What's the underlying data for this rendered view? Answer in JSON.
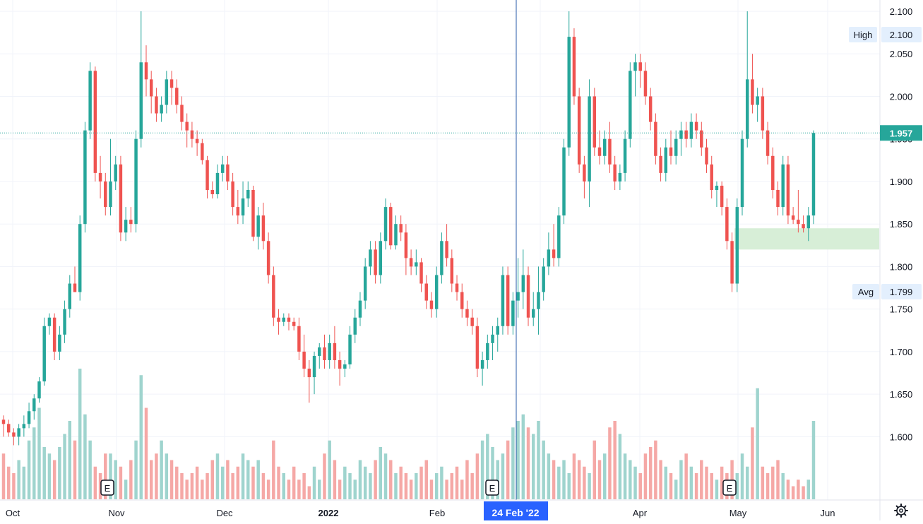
{
  "colors": {
    "up": "#26a69a",
    "down": "#ef5350",
    "up_volume": "#9fd4ce",
    "down_volume": "#f5a8a6",
    "grid": "#f0f3fa",
    "crosshair": "#2a5ba8",
    "last_price": "#26a69a",
    "badge_bg": "#e3effd",
    "range_zone": "#d7eed7",
    "crosshair_label_bg": "#2962ff"
  },
  "y_axis": {
    "ticks": [
      "1.600",
      "1.650",
      "1.700",
      "1.750",
      "1.800",
      "1.850",
      "1.900",
      "1.950",
      "2.000",
      "2.050",
      "2.100"
    ],
    "range": [
      1.563,
      2.112
    ]
  },
  "x_axis": {
    "labels": [
      "Oct",
      "Nov",
      "Dec",
      "2022",
      "Feb",
      "Apr",
      "May",
      "Jun"
    ]
  },
  "badges": {
    "high_label": "High",
    "high_value": "2.100",
    "avg_label": "Avg",
    "avg_value": "1.799",
    "last_price": "1.957"
  },
  "crosshair_date": "24 Feb '22",
  "earnings_marker": "E",
  "settings_icon": "gear-icon",
  "chart_data": {
    "type": "candlestick",
    "last_price": 1.957,
    "high": 2.1,
    "avg": 1.799,
    "crosshair": "24 Feb '22",
    "earnings_markers": [
      "Nov",
      "Feb",
      "May"
    ],
    "range_zone": [
      1.82,
      1.845
    ],
    "ohlc": [
      [
        1.62,
        1.625,
        1.6,
        1.615
      ],
      [
        1.615,
        1.62,
        1.6,
        1.605
      ],
      [
        1.605,
        1.61,
        1.59,
        1.6
      ],
      [
        1.6,
        1.615,
        1.59,
        1.61
      ],
      [
        1.61,
        1.625,
        1.6,
        1.615
      ],
      [
        1.615,
        1.64,
        1.61,
        1.63
      ],
      [
        1.63,
        1.65,
        1.62,
        1.645
      ],
      [
        1.645,
        1.67,
        1.64,
        1.665
      ],
      [
        1.665,
        1.74,
        1.66,
        1.73
      ],
      [
        1.73,
        1.745,
        1.72,
        1.74
      ],
      [
        1.74,
        1.745,
        1.69,
        1.7
      ],
      [
        1.7,
        1.73,
        1.69,
        1.72
      ],
      [
        1.72,
        1.76,
        1.71,
        1.75
      ],
      [
        1.75,
        1.79,
        1.74,
        1.78
      ],
      [
        1.78,
        1.8,
        1.77,
        1.77
      ],
      [
        1.77,
        1.86,
        1.76,
        1.85
      ],
      [
        1.85,
        1.97,
        1.84,
        1.96
      ],
      [
        1.96,
        2.04,
        1.95,
        2.03
      ],
      [
        2.03,
        2.035,
        1.9,
        1.91
      ],
      [
        1.91,
        1.93,
        1.88,
        1.9
      ],
      [
        1.9,
        1.91,
        1.86,
        1.87
      ],
      [
        1.87,
        1.95,
        1.86,
        1.9
      ],
      [
        1.9,
        1.93,
        1.89,
        1.92
      ],
      [
        1.92,
        1.93,
        1.83,
        1.84
      ],
      [
        1.84,
        1.87,
        1.83,
        1.855
      ],
      [
        1.855,
        1.87,
        1.84,
        1.85
      ],
      [
        1.85,
        1.96,
        1.84,
        1.95
      ],
      [
        1.95,
        2.1,
        1.94,
        2.04
      ],
      [
        2.04,
        2.06,
        2.0,
        2.02
      ],
      [
        2.02,
        2.03,
        1.98,
        2.0
      ],
      [
        2.0,
        2.01,
        1.97,
        1.98
      ],
      [
        1.98,
        2.0,
        1.97,
        1.99
      ],
      [
        1.99,
        2.03,
        1.98,
        2.02
      ],
      [
        2.02,
        2.03,
        1.99,
        2.01
      ],
      [
        2.01,
        2.02,
        1.98,
        1.99
      ],
      [
        1.99,
        2.0,
        1.96,
        1.97
      ],
      [
        1.97,
        1.98,
        1.94,
        1.96
      ],
      [
        1.96,
        1.97,
        1.94,
        1.95
      ],
      [
        1.95,
        1.96,
        1.93,
        1.945
      ],
      [
        1.945,
        1.95,
        1.92,
        1.925
      ],
      [
        1.925,
        1.93,
        1.88,
        1.89
      ],
      [
        1.89,
        1.9,
        1.88,
        1.885
      ],
      [
        1.885,
        1.92,
        1.88,
        1.91
      ],
      [
        1.91,
        1.93,
        1.9,
        1.92
      ],
      [
        1.92,
        1.93,
        1.89,
        1.9
      ],
      [
        1.9,
        1.91,
        1.86,
        1.87
      ],
      [
        1.87,
        1.89,
        1.85,
        1.86
      ],
      [
        1.86,
        1.9,
        1.85,
        1.88
      ],
      [
        1.88,
        1.9,
        1.87,
        1.89
      ],
      [
        1.89,
        1.895,
        1.83,
        1.835
      ],
      [
        1.835,
        1.87,
        1.82,
        1.86
      ],
      [
        1.86,
        1.875,
        1.82,
        1.83
      ],
      [
        1.83,
        1.84,
        1.78,
        1.79
      ],
      [
        1.79,
        1.8,
        1.73,
        1.74
      ],
      [
        1.74,
        1.75,
        1.72,
        1.735
      ],
      [
        1.735,
        1.745,
        1.73,
        1.74
      ],
      [
        1.74,
        1.745,
        1.725,
        1.735
      ],
      [
        1.735,
        1.74,
        1.725,
        1.73
      ],
      [
        1.73,
        1.74,
        1.69,
        1.7
      ],
      [
        1.7,
        1.72,
        1.67,
        1.68
      ],
      [
        1.68,
        1.69,
        1.64,
        1.67
      ],
      [
        1.67,
        1.7,
        1.65,
        1.695
      ],
      [
        1.695,
        1.71,
        1.68,
        1.705
      ],
      [
        1.705,
        1.72,
        1.68,
        1.69
      ],
      [
        1.69,
        1.72,
        1.68,
        1.71
      ],
      [
        1.71,
        1.73,
        1.68,
        1.69
      ],
      [
        1.69,
        1.7,
        1.66,
        1.68
      ],
      [
        1.68,
        1.69,
        1.67,
        1.685
      ],
      [
        1.685,
        1.73,
        1.68,
        1.72
      ],
      [
        1.72,
        1.75,
        1.71,
        1.74
      ],
      [
        1.74,
        1.77,
        1.73,
        1.76
      ],
      [
        1.76,
        1.81,
        1.75,
        1.8
      ],
      [
        1.8,
        1.83,
        1.79,
        1.82
      ],
      [
        1.82,
        1.83,
        1.78,
        1.79
      ],
      [
        1.79,
        1.84,
        1.78,
        1.83
      ],
      [
        1.83,
        1.88,
        1.82,
        1.87
      ],
      [
        1.87,
        1.875,
        1.82,
        1.825
      ],
      [
        1.825,
        1.86,
        1.82,
        1.85
      ],
      [
        1.85,
        1.86,
        1.83,
        1.84
      ],
      [
        1.84,
        1.85,
        1.79,
        1.81
      ],
      [
        1.81,
        1.82,
        1.79,
        1.8
      ],
      [
        1.8,
        1.82,
        1.79,
        1.805
      ],
      [
        1.805,
        1.81,
        1.77,
        1.78
      ],
      [
        1.78,
        1.79,
        1.75,
        1.76
      ],
      [
        1.76,
        1.77,
        1.74,
        1.75
      ],
      [
        1.75,
        1.8,
        1.74,
        1.79
      ],
      [
        1.79,
        1.84,
        1.78,
        1.83
      ],
      [
        1.83,
        1.85,
        1.8,
        1.81
      ],
      [
        1.81,
        1.82,
        1.77,
        1.78
      ],
      [
        1.78,
        1.79,
        1.76,
        1.77
      ],
      [
        1.77,
        1.78,
        1.74,
        1.75
      ],
      [
        1.75,
        1.76,
        1.73,
        1.74
      ],
      [
        1.74,
        1.75,
        1.72,
        1.73
      ],
      [
        1.73,
        1.74,
        1.67,
        1.68
      ],
      [
        1.68,
        1.7,
        1.66,
        1.69
      ],
      [
        1.69,
        1.72,
        1.68,
        1.71
      ],
      [
        1.71,
        1.73,
        1.69,
        1.72
      ],
      [
        1.72,
        1.74,
        1.7,
        1.73
      ],
      [
        1.73,
        1.8,
        1.72,
        1.79
      ],
      [
        1.79,
        1.8,
        1.72,
        1.73
      ],
      [
        1.73,
        1.77,
        1.72,
        1.76
      ],
      [
        1.76,
        1.81,
        1.74,
        1.77
      ],
      [
        1.77,
        1.82,
        1.75,
        1.79
      ],
      [
        1.79,
        1.8,
        1.73,
        1.74
      ],
      [
        1.74,
        1.77,
        1.73,
        1.75
      ],
      [
        1.75,
        1.8,
        1.72,
        1.77
      ],
      [
        1.77,
        1.81,
        1.76,
        1.8
      ],
      [
        1.8,
        1.84,
        1.79,
        1.82
      ],
      [
        1.82,
        1.85,
        1.8,
        1.81
      ],
      [
        1.81,
        1.87,
        1.8,
        1.86
      ],
      [
        1.86,
        1.95,
        1.85,
        1.94
      ],
      [
        1.94,
        2.1,
        1.93,
        2.07
      ],
      [
        2.07,
        2.08,
        1.99,
        2.0
      ],
      [
        2.0,
        2.01,
        1.91,
        1.92
      ],
      [
        1.92,
        1.93,
        1.88,
        1.9
      ],
      [
        1.9,
        2.02,
        1.87,
        2.0
      ],
      [
        2.0,
        2.01,
        1.93,
        1.94
      ],
      [
        1.94,
        1.96,
        1.92,
        1.93
      ],
      [
        1.93,
        1.96,
        1.92,
        1.95
      ],
      [
        1.95,
        1.97,
        1.91,
        1.92
      ],
      [
        1.92,
        1.93,
        1.89,
        1.9
      ],
      [
        1.9,
        1.92,
        1.89,
        1.91
      ],
      [
        1.91,
        1.96,
        1.9,
        1.95
      ],
      [
        1.95,
        2.04,
        1.94,
        2.03
      ],
      [
        2.03,
        2.05,
        2.0,
        2.04
      ],
      [
        2.04,
        2.05,
        2.01,
        2.03
      ],
      [
        2.03,
        2.04,
        1.99,
        2.0
      ],
      [
        2.0,
        2.01,
        1.96,
        1.97
      ],
      [
        1.97,
        1.98,
        1.92,
        1.93
      ],
      [
        1.93,
        1.94,
        1.9,
        1.91
      ],
      [
        1.91,
        1.95,
        1.9,
        1.94
      ],
      [
        1.94,
        1.96,
        1.92,
        1.93
      ],
      [
        1.93,
        1.96,
        1.92,
        1.95
      ],
      [
        1.95,
        1.97,
        1.93,
        1.96
      ],
      [
        1.96,
        1.97,
        1.94,
        1.95
      ],
      [
        1.95,
        1.98,
        1.94,
        1.97
      ],
      [
        1.97,
        1.98,
        1.95,
        1.96
      ],
      [
        1.96,
        1.97,
        1.93,
        1.94
      ],
      [
        1.94,
        1.95,
        1.91,
        1.92
      ],
      [
        1.92,
        1.93,
        1.88,
        1.89
      ],
      [
        1.89,
        1.9,
        1.87,
        1.895
      ],
      [
        1.895,
        1.9,
        1.86,
        1.87
      ],
      [
        1.87,
        1.88,
        1.82,
        1.83
      ],
      [
        1.83,
        1.84,
        1.77,
        1.78
      ],
      [
        1.78,
        1.88,
        1.77,
        1.87
      ],
      [
        1.87,
        1.96,
        1.86,
        1.95
      ],
      [
        1.95,
        2.1,
        1.94,
        2.02
      ],
      [
        2.02,
        2.05,
        1.98,
        1.99
      ],
      [
        1.99,
        2.01,
        1.97,
        2.0
      ],
      [
        2.0,
        2.01,
        1.95,
        1.96
      ],
      [
        1.96,
        1.97,
        1.92,
        1.93
      ],
      [
        1.93,
        1.94,
        1.88,
        1.89
      ],
      [
        1.89,
        1.9,
        1.86,
        1.87
      ],
      [
        1.87,
        1.93,
        1.86,
        1.92
      ],
      [
        1.92,
        1.93,
        1.85,
        1.86
      ],
      [
        1.86,
        1.87,
        1.85,
        1.855
      ],
      [
        1.855,
        1.89,
        1.84,
        1.85
      ],
      [
        1.85,
        1.86,
        1.84,
        1.845
      ],
      [
        1.845,
        1.87,
        1.83,
        1.86
      ],
      [
        1.86,
        1.96,
        1.85,
        1.957
      ]
    ],
    "volume_relative": [
      0.35,
      0.25,
      0.2,
      0.3,
      0.25,
      0.45,
      0.55,
      0.7,
      0.4,
      0.35,
      0.3,
      0.4,
      0.5,
      0.6,
      0.45,
      1.0,
      0.65,
      0.45,
      0.25,
      0.2,
      0.35,
      0.35,
      0.3,
      0.25,
      0.15,
      0.3,
      0.45,
      0.95,
      0.7,
      0.3,
      0.35,
      0.45,
      0.35,
      0.3,
      0.25,
      0.2,
      0.15,
      0.2,
      0.25,
      0.15,
      0.2,
      0.3,
      0.35,
      0.25,
      0.3,
      0.2,
      0.25,
      0.35,
      0.3,
      0.25,
      0.3,
      0.2,
      0.15,
      0.45,
      0.25,
      0.2,
      0.15,
      0.25,
      0.15,
      0.2,
      0.1,
      0.25,
      0.15,
      0.35,
      0.45,
      0.3,
      0.15,
      0.25,
      0.2,
      0.15,
      0.3,
      0.25,
      0.2,
      0.3,
      0.4,
      0.35,
      0.3,
      0.2,
      0.25,
      0.2,
      0.15,
      0.2,
      0.25,
      0.3,
      0.15,
      0.2,
      0.25,
      0.15,
      0.2,
      0.25,
      0.15,
      0.3,
      0.2,
      0.35,
      0.45,
      0.5,
      0.4,
      0.3,
      0.35,
      0.45,
      0.55,
      0.6,
      0.65,
      0.55,
      0.5,
      0.6,
      0.45,
      0.35,
      0.3,
      0.25,
      0.3,
      0.2,
      0.35,
      0.3,
      0.25,
      0.2,
      0.45,
      0.3,
      0.35,
      0.55,
      0.6,
      0.5,
      0.35,
      0.3,
      0.25,
      0.2,
      0.35,
      0.4,
      0.45,
      0.3,
      0.25,
      0.2,
      0.15,
      0.3,
      0.35,
      0.25,
      0.2,
      0.3,
      0.25,
      0.2,
      0.15,
      0.25,
      0.2,
      0.3,
      0.2,
      0.35,
      0.25,
      0.55,
      0.85,
      0.25,
      0.2,
      0.25,
      0.3,
      0.2,
      0.15,
      0.1,
      0.15,
      0.1,
      0.15,
      0.6
    ]
  }
}
